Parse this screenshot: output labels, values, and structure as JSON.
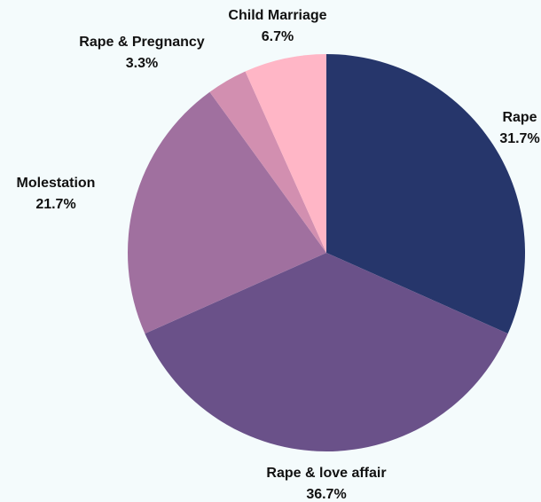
{
  "chart_data": {
    "type": "pie",
    "categories": [
      "Rape",
      "Rape & love affair",
      "Molestation",
      "Rape & Pregnancy",
      "Child Marriage"
    ],
    "values": [
      31.7,
      36.7,
      21.7,
      3.3,
      6.7
    ],
    "value_labels": [
      "31.7%",
      "36.7%",
      "21.7%",
      "3.3%",
      "6.7%"
    ],
    "colors": [
      "#26366b",
      "#6a5189",
      "#a0709f",
      "#d28fb0",
      "#ffb6c6"
    ]
  }
}
